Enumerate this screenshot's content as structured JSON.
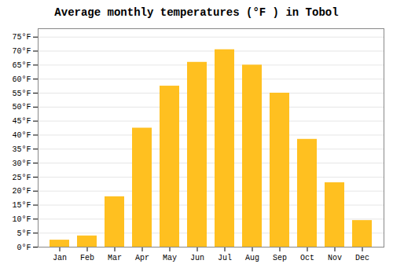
{
  "chart_data": {
    "type": "bar",
    "title": "Average monthly temperatures (°F ) in Tobol",
    "categories": [
      "Jan",
      "Feb",
      "Mar",
      "Apr",
      "May",
      "Jun",
      "Jul",
      "Aug",
      "Sep",
      "Oct",
      "Nov",
      "Dec"
    ],
    "values": [
      2.5,
      4.0,
      18.0,
      42.5,
      57.5,
      66.0,
      70.5,
      65.0,
      55.0,
      38.5,
      23.0,
      9.5
    ],
    "color": "#FFC020",
    "ylim": [
      0,
      78
    ],
    "yticks": [
      {
        "value": 0,
        "label": "0°F"
      },
      {
        "value": 5,
        "label": "5°F"
      },
      {
        "value": 10,
        "label": "10°F"
      },
      {
        "value": 15,
        "label": "15°F"
      },
      {
        "value": 20,
        "label": "20°F"
      },
      {
        "value": 25,
        "label": "25°F"
      },
      {
        "value": 30,
        "label": "30°F"
      },
      {
        "value": 35,
        "label": "35°F"
      },
      {
        "value": 40,
        "label": "40°F"
      },
      {
        "value": 45,
        "label": "45°F"
      },
      {
        "value": 50,
        "label": "50°F"
      },
      {
        "value": 55,
        "label": "55°F"
      },
      {
        "value": 60,
        "label": "60°F"
      },
      {
        "value": 65,
        "label": "65°F"
      },
      {
        "value": 70,
        "label": "70°F"
      },
      {
        "value": 75,
        "label": "75°F"
      }
    ],
    "grid": true
  }
}
